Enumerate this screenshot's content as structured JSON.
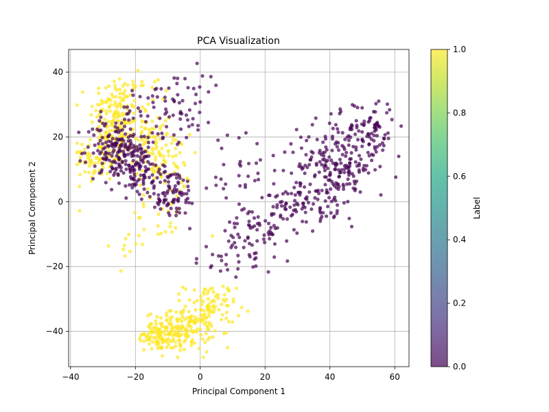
{
  "chart_data": {
    "type": "scatter",
    "title": "PCA Visualization",
    "xlabel": "Principal Component 1",
    "ylabel": "Principal Component 2",
    "xlim": [
      -40.6,
      64.4
    ],
    "ylim": [
      -50.9,
      47.0
    ],
    "xticks": [
      -40,
      -20,
      0,
      20,
      40,
      60
    ],
    "yticks": [
      -40,
      -20,
      0,
      20,
      40
    ],
    "grid": true,
    "colormap": "viridis",
    "point_alpha": 0.7,
    "colorbar": {
      "label": "Label",
      "range": [
        0.0,
        1.0
      ],
      "ticks": [
        "0.0",
        "0.2",
        "0.4",
        "0.6",
        "0.8",
        "1.0"
      ]
    },
    "series": [
      {
        "label_value": 0,
        "color": "#440154",
        "clusters": [
          {
            "center": [
              -26,
              17
            ],
            "spread": [
              4.5,
              4.5
            ],
            "n": 140
          },
          {
            "center": [
              -20,
              10
            ],
            "spread": [
              4,
              4
            ],
            "n": 100
          },
          {
            "center": [
              -9,
              3
            ],
            "spread": [
              4,
              4
            ],
            "n": 90
          },
          {
            "center": [
              -14,
              25
            ],
            "spread": [
              6,
              6
            ],
            "n": 50
          },
          {
            "center": [
              -4,
              30
            ],
            "spread": [
              4,
              5
            ],
            "n": 25
          },
          {
            "center": [
              1,
              38
            ],
            "spread": [
              4,
              3
            ],
            "n": 10
          },
          {
            "center": [
              9,
              6
            ],
            "spread": [
              6,
              6
            ],
            "n": 25
          },
          {
            "center": [
              42,
              11
            ],
            "spread": [
              6,
              7
            ],
            "n": 200
          },
          {
            "center": [
              52,
              22
            ],
            "spread": [
              4,
              5
            ],
            "n": 80
          },
          {
            "center": [
              30,
              0
            ],
            "spread": [
              5,
              4
            ],
            "n": 70
          },
          {
            "center": [
              18,
              -10
            ],
            "spread": [
              6,
              5
            ],
            "n": 60
          },
          {
            "center": [
              10,
              -18
            ],
            "spread": [
              6,
              3
            ],
            "n": 25
          },
          {
            "center": [
              20,
              15
            ],
            "spread": [
              8,
              8
            ],
            "n": 15
          }
        ]
      },
      {
        "label_value": 1,
        "color": "#fde725",
        "clusters": [
          {
            "center": [
              -26,
              27
            ],
            "spread": [
              4,
              6
            ],
            "n": 140
          },
          {
            "center": [
              -31,
              14
            ],
            "spread": [
              4,
              4
            ],
            "n": 100
          },
          {
            "center": [
              -17,
              20
            ],
            "spread": [
              4,
              5
            ],
            "n": 80
          },
          {
            "center": [
              -11,
              11
            ],
            "spread": [
              4,
              5
            ],
            "n": 70
          },
          {
            "center": [
              -13,
              -6
            ],
            "spread": [
              6,
              4
            ],
            "n": 20
          },
          {
            "center": [
              -22,
              -12
            ],
            "spread": [
              3,
              4
            ],
            "n": 12
          },
          {
            "center": [
              -7,
              -40
            ],
            "spread": [
              5,
              3
            ],
            "n": 180
          },
          {
            "center": [
              3,
              -33
            ],
            "spread": [
              4,
              4
            ],
            "n": 100
          },
          {
            "center": [
              -14,
              -42
            ],
            "spread": [
              3,
              2
            ],
            "n": 40
          },
          {
            "center": [
              -20,
              37
            ],
            "spread": [
              5,
              3
            ],
            "n": 15
          }
        ]
      }
    ]
  }
}
